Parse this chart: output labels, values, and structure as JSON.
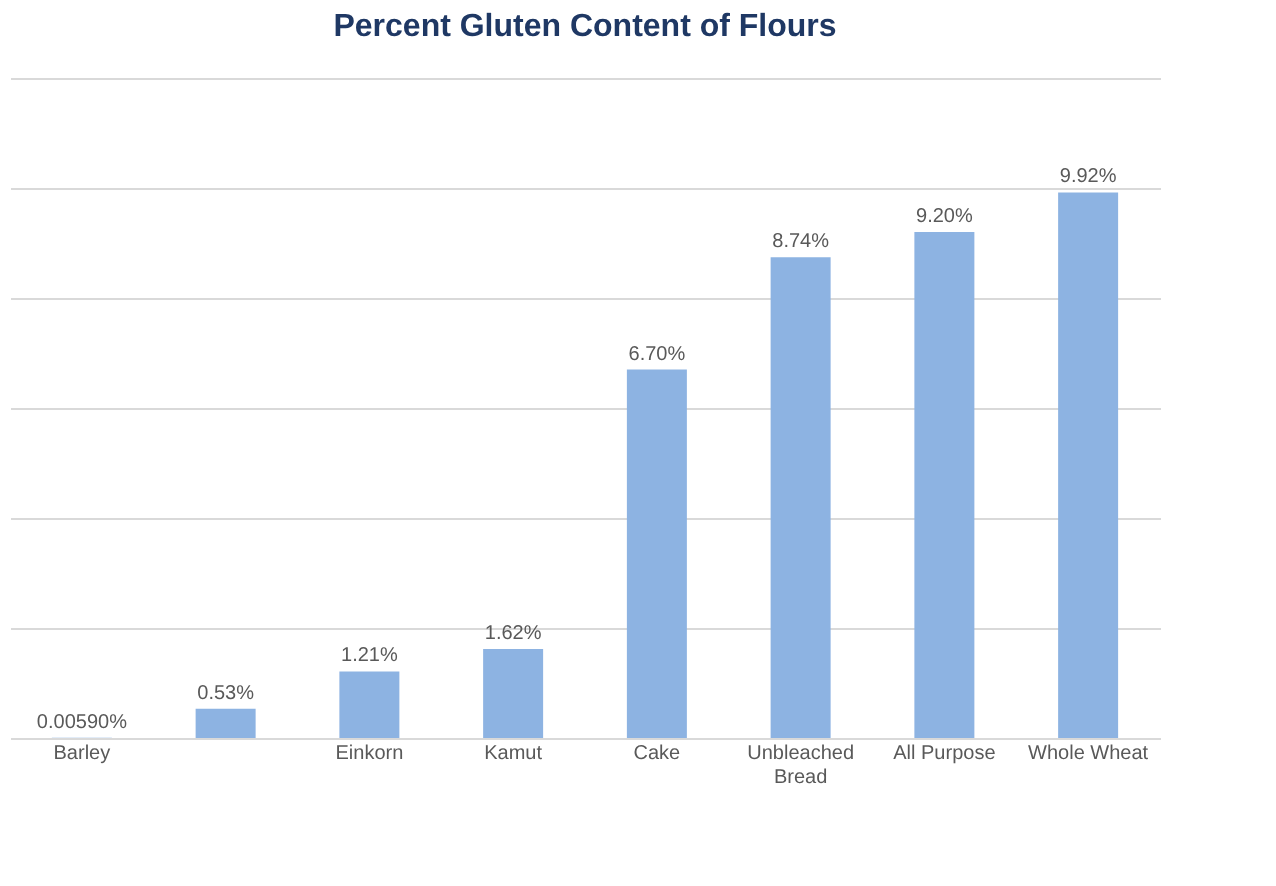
{
  "chart_data": {
    "type": "bar",
    "title": "Percent Gluten Content of Flours",
    "categories": [
      "Barley",
      null,
      "Einkorn",
      "Kamut",
      "Cake",
      "Unbleached Bread",
      "All Purpose",
      "Whole Wheat"
    ],
    "values": [
      0.0059,
      0.53,
      1.21,
      1.62,
      6.7,
      8.74,
      9.2,
      9.92
    ],
    "value_labels": [
      "0.00590%",
      "0.53%",
      "1.21%",
      "1.62%",
      "6.70%",
      "8.74%",
      "9.20%",
      "9.92%"
    ],
    "color": "#8db3e2",
    "ylim": [
      0,
      12
    ],
    "yticks": [
      {
        "value": 0,
        "label": null
      },
      {
        "value": 2,
        "label": null
      },
      {
        "value": 4,
        "label": null
      },
      {
        "value": 6,
        "label": null
      },
      {
        "value": 8,
        "label": null
      },
      {
        "value": 10,
        "label": null
      },
      {
        "value": 12,
        "label": null
      }
    ],
    "tick_labels": "x",
    "grid": "y"
  }
}
